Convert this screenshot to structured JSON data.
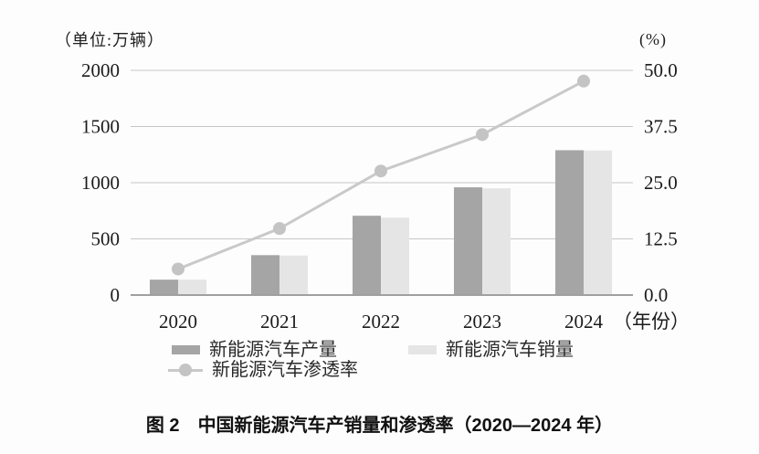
{
  "chart_data": {
    "type": "bar+line",
    "title": "中国新能源汽车产销量和渗透率（2020—2024 年）",
    "categories": [
      "2020",
      "2021",
      "2022",
      "2023",
      "2024"
    ],
    "series": [
      {
        "name": "新能源汽车产量",
        "type": "bar",
        "axis": "left",
        "values": [
          137,
          355,
          706,
          959,
          1289
        ]
      },
      {
        "name": "新能源汽车销量",
        "type": "bar",
        "axis": "left",
        "values": [
          137,
          352,
          689,
          950,
          1287
        ]
      },
      {
        "name": "新能源汽车渗透率",
        "type": "line",
        "axis": "right",
        "values": [
          5.8,
          14.8,
          27.6,
          35.7,
          47.6
        ]
      }
    ],
    "left_axis": {
      "unit_label": "（单位:万辆）",
      "ticks": [
        "0",
        "500",
        "1000",
        "1500",
        "2000"
      ],
      "range": [
        0,
        2000
      ]
    },
    "right_axis": {
      "unit_label": "(%)",
      "ticks": [
        "0.0",
        "12.5",
        "25.0",
        "37.5",
        "50.0"
      ],
      "range": [
        0,
        50
      ]
    },
    "x_suffix": "（年份）",
    "grid": true,
    "legend_position": "bottom",
    "colors": {
      "production_bar": "#a5a5a5",
      "sales_bar": "#e5e5e5",
      "line": "#c9c9c9",
      "point": "#c4c4c4",
      "gridline": "#c7c7c7",
      "axis": "#a0a0a0",
      "text": "#1b1b1b"
    }
  },
  "legend": {
    "items": [
      {
        "label": "新能源汽车产量",
        "swatch": "bar-dark"
      },
      {
        "label": "新能源汽车销量",
        "swatch": "bar-light"
      },
      {
        "label": "新能源汽车渗透率",
        "swatch": "line-dot"
      }
    ]
  },
  "caption": {
    "prefix": "图 2",
    "text": "中国新能源汽车产销量和渗透率（2020—2024 年）"
  }
}
